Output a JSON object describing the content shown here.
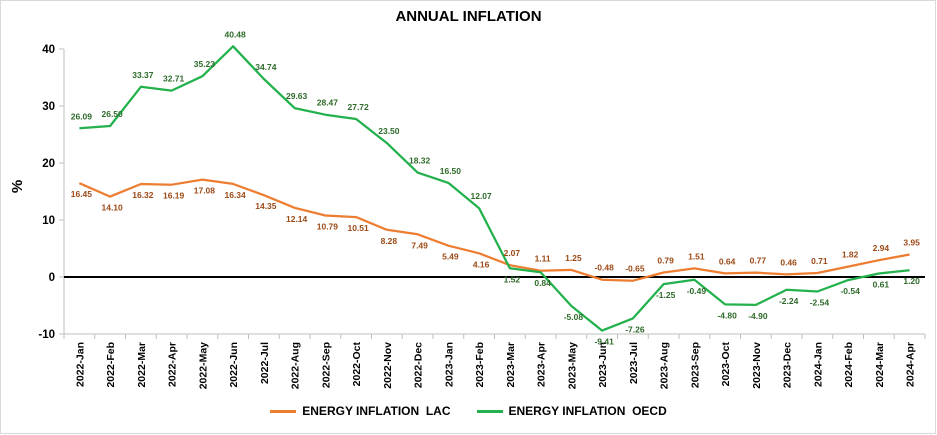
{
  "chart_data": {
    "type": "line",
    "title": "ANNUAL INFLATION",
    "ylabel": "%",
    "xlabel": "",
    "ylim": [
      -10,
      40
    ],
    "yticks": [
      -10,
      0,
      10,
      20,
      30,
      40
    ],
    "grid": false,
    "legend_position": "bottom",
    "categories": [
      "2022-Jan",
      "2022-Feb",
      "2022-Mar",
      "2022-Apr",
      "2022-May",
      "2022-Jun",
      "2022-Jul",
      "2022-Aug",
      "2022-Sep",
      "2022-Oct",
      "2022-Nov",
      "2022-Dec",
      "2023-Jan",
      "2023-Feb",
      "2023-Mar",
      "2023-Apr",
      "2023-May",
      "2023-Jun",
      "2023-Jul",
      "2023-Aug",
      "2023-Sep",
      "2023-Oct",
      "2023-Nov",
      "2023-Dec",
      "2024-Jan",
      "2024-Feb",
      "2024-Mar",
      "2024-Apr"
    ],
    "series": [
      {
        "name": "ENERGY INFLATION  LAC",
        "color": "#ed7d31",
        "label_color": "#9c4a16",
        "values": [
          16.45,
          14.1,
          16.32,
          16.19,
          17.08,
          16.34,
          14.35,
          12.14,
          10.79,
          10.51,
          8.28,
          7.49,
          5.49,
          4.16,
          2.07,
          1.11,
          1.25,
          -0.48,
          -0.65,
          0.79,
          1.51,
          0.64,
          0.77,
          0.46,
          0.71,
          1.82,
          2.94,
          3.95
        ],
        "labels": [
          "16.45",
          "14.10",
          "16.32",
          "16.19",
          "17.08",
          "16.34",
          "14.35",
          "12.14",
          "10.79",
          "10.51",
          "8.28",
          "7.49",
          "5.49",
          "4.16",
          "2.07",
          "1.11",
          "1.25",
          "-0.48",
          "-0.65",
          "0.79",
          "1.51",
          "0.64",
          "0.77",
          "0.46",
          "0.71",
          "1.82",
          "2.94",
          "3.95"
        ]
      },
      {
        "name": "ENERGY INFLATION  OECD",
        "color": "#22b14c",
        "label_color": "#2e6b2a",
        "values": [
          26.09,
          26.5,
          33.37,
          32.71,
          35.23,
          40.48,
          34.74,
          29.63,
          28.47,
          27.72,
          23.5,
          18.32,
          16.5,
          12.07,
          1.52,
          0.84,
          -5.08,
          -9.41,
          -7.26,
          -1.25,
          -0.49,
          -4.8,
          -4.9,
          -2.24,
          -2.54,
          -0.54,
          0.61,
          1.2
        ],
        "labels": [
          "26.09",
          "26.50",
          "33.37",
          "32.71",
          "35.23",
          "40.48",
          "34.74",
          "29.63",
          "28.47",
          "27.72",
          "23.50",
          "18.32",
          "16.50",
          "12.07",
          "1.52",
          "0.84",
          "-5.08",
          "-9.41",
          "-7.26",
          "-1.25",
          "-0.49",
          "-4.80",
          "-4.90",
          "-2.24",
          "-2.54",
          "-0.54",
          "0.61",
          "1.20"
        ]
      }
    ]
  }
}
